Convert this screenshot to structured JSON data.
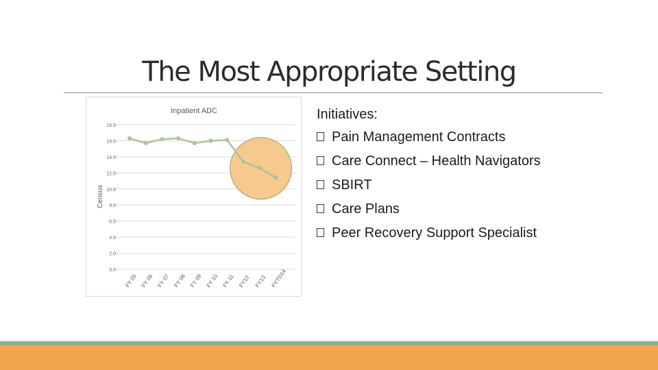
{
  "slide": {
    "title": "The Most Appropriate Setting"
  },
  "initiatives": {
    "heading": "Initiatives:",
    "items": [
      "Pain Management Contracts",
      "Care Connect – Health Navigators",
      "SBIRT",
      "Care Plans",
      "Peer Recovery Support Specialist"
    ]
  },
  "colors": {
    "line": "#a9c49a",
    "highlight_fill": "#f7c98d",
    "highlight_stroke": "#9a9a6a",
    "gridline": "#d9d9d9",
    "footer_green": "#8faf8c",
    "footer_orange": "#f2a54a"
  },
  "chart_data": {
    "type": "line",
    "title": "Inpatient ADC",
    "ylabel": "Census",
    "xlabel": "",
    "categories": [
      "FY 05",
      "FY 06",
      "FY 07",
      "FY 08",
      "FY 09",
      "FY 10",
      "FY 11",
      "FY12",
      "FY13",
      "FYTD14"
    ],
    "values": [
      16.3,
      15.7,
      16.2,
      16.3,
      15.7,
      16.0,
      16.1,
      13.4,
      12.6,
      11.4
    ],
    "ylim": [
      0,
      18
    ],
    "yticks": [
      "0.0",
      "2.0",
      "4.0",
      "6.0",
      "8.0",
      "10.0",
      "12.0",
      "14.0",
      "16.0",
      "18.0"
    ],
    "grid": true,
    "legend": "none",
    "annotation": "highlight circle around FY12–FYTD14"
  }
}
